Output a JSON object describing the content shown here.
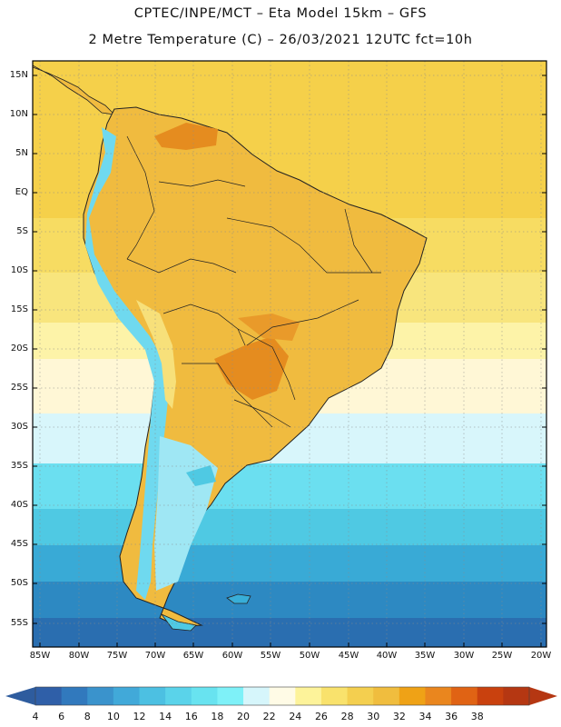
{
  "header": {
    "line1": "CPTEC/INPE/MCT –  Eta Model 15km – GFS",
    "line2": "2 Metre Temperature (C) – 26/03/2021 12UTC fct=10h"
  },
  "map": {
    "lat_labels": [
      "15N",
      "10N",
      "5N",
      "EQ",
      "5S",
      "10S",
      "15S",
      "20S",
      "25S",
      "30S",
      "35S",
      "40S",
      "45S",
      "50S",
      "55S"
    ],
    "lon_labels": [
      "85W",
      "80W",
      "75W",
      "70W",
      "65W",
      "60W",
      "55W",
      "50W",
      "45W",
      "40W",
      "35W",
      "30W",
      "25W",
      "20W"
    ],
    "ocean_band_colors": [
      "#f5d04a",
      "#f5d04a",
      "#f7dc62",
      "#f8e57d",
      "#fdf3a8",
      "#fff7d6",
      "#d8f6fb",
      "#6bdff0",
      "#4fc9e3",
      "#39aad6",
      "#2d89c2",
      "#2a6eb0"
    ],
    "land_color": "#f0bb3f",
    "hot_color": "#e58c1f",
    "mountain_color": "#6fd9ef"
  },
  "colorbar": {
    "labels": [
      "4",
      "6",
      "8",
      "10",
      "12",
      "14",
      "16",
      "18",
      "20",
      "22",
      "24",
      "26",
      "28",
      "30",
      "32",
      "34",
      "36",
      "38"
    ],
    "colors": [
      "#2f5fa8",
      "#3179bd",
      "#3a93cc",
      "#41a9d9",
      "#4cc0e2",
      "#5ad3ea",
      "#68e3f0",
      "#7ef1f8",
      "#d6f6fb",
      "#fffbe6",
      "#fdf39a",
      "#f9e26c",
      "#f4cf4f",
      "#f0bd3e",
      "#efa216",
      "#ea861e",
      "#e06314",
      "#c9410e",
      "#b53712"
    ],
    "low_arrow_color": "#2e5c9e",
    "high_arrow_color": "#b53712"
  }
}
